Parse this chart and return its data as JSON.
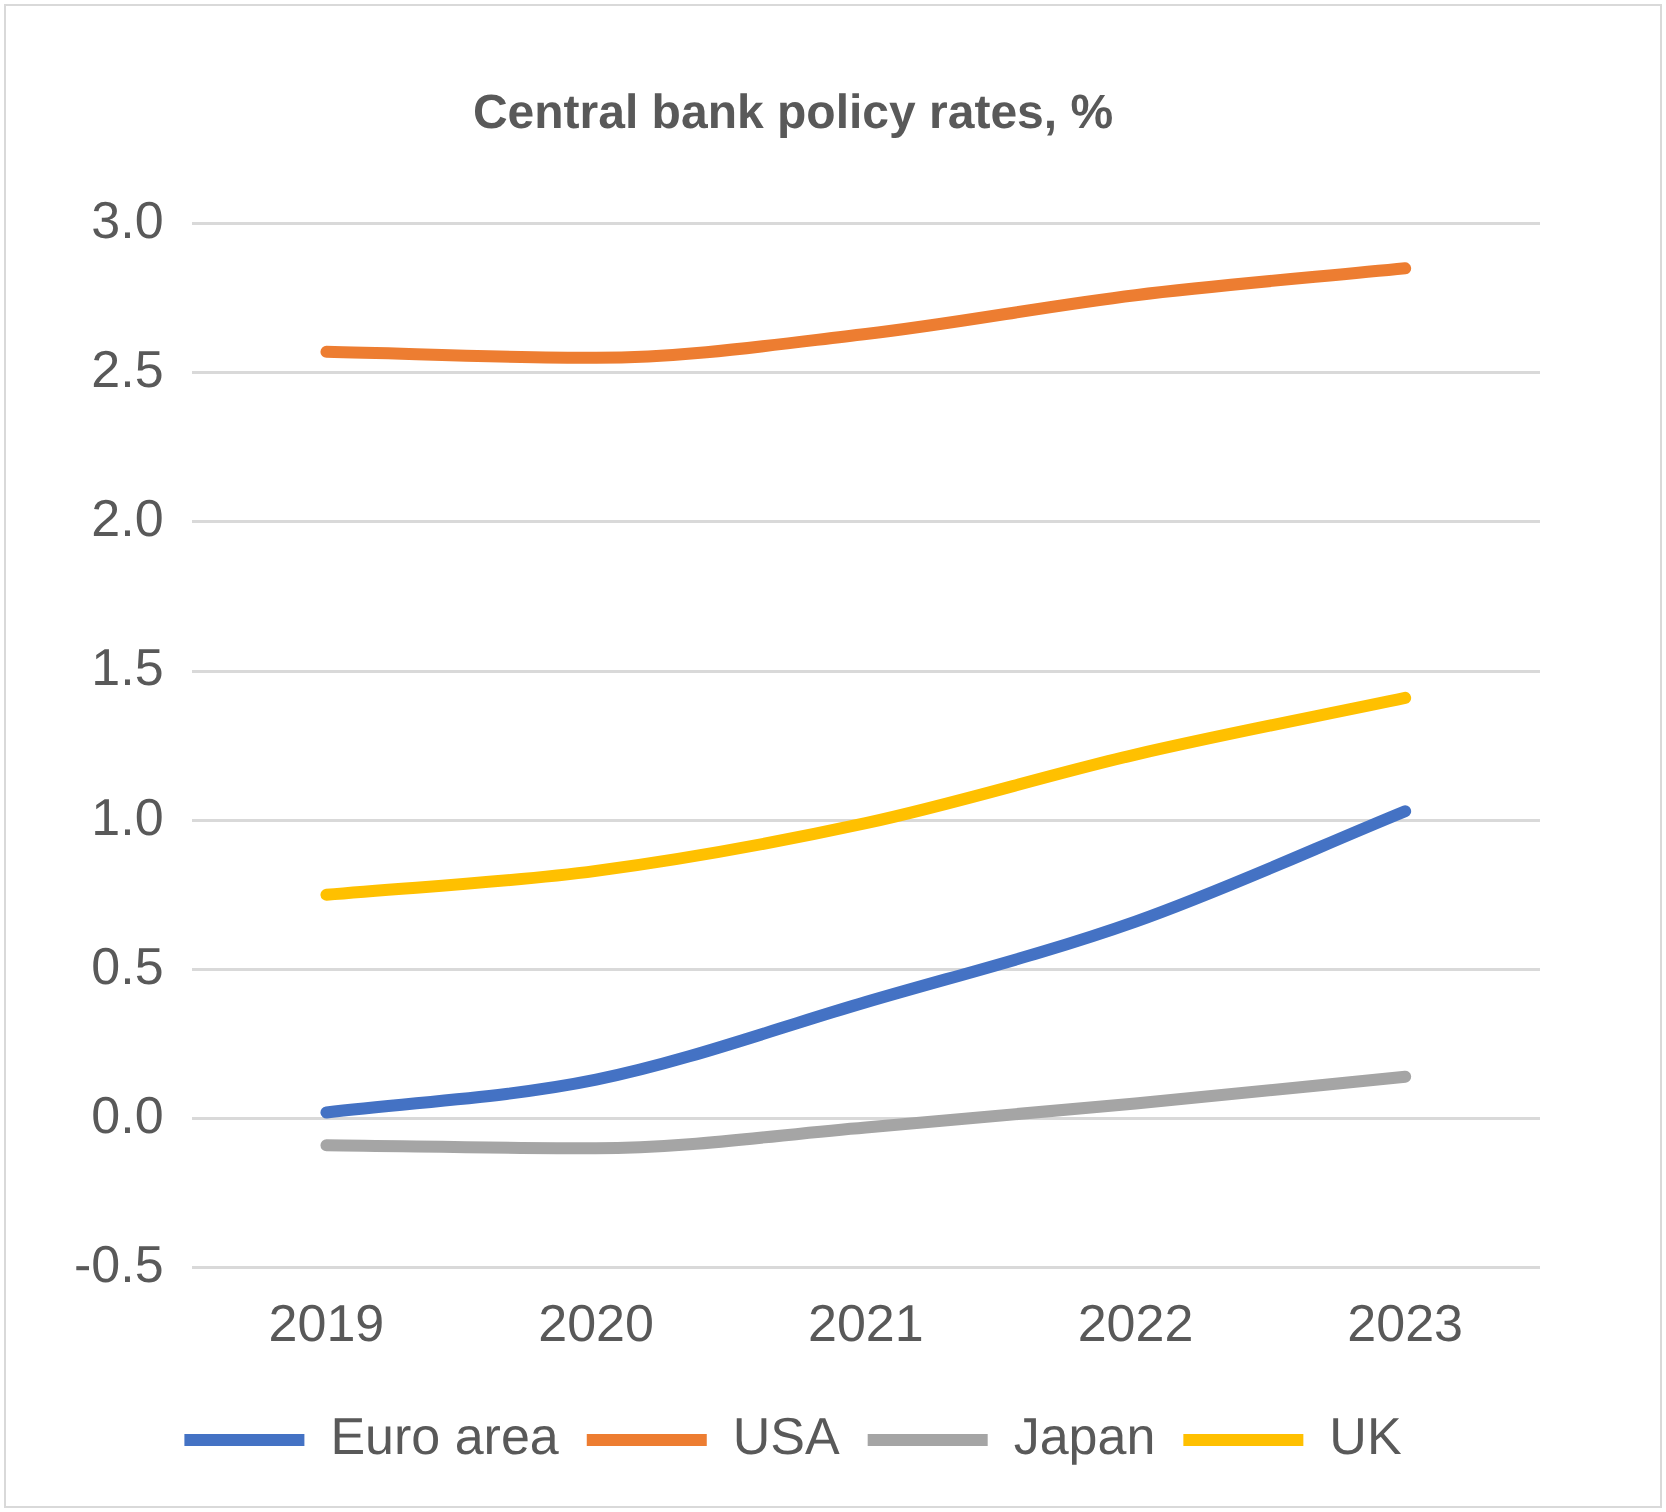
{
  "chart_data": {
    "type": "line",
    "title": "Central bank policy rates, %",
    "categories": [
      "2019",
      "2020",
      "2021",
      "2022",
      "2023"
    ],
    "series": [
      {
        "name": "Euro area",
        "color": "#4472c4",
        "values": [
          0.02,
          0.13,
          0.39,
          0.66,
          1.03
        ]
      },
      {
        "name": "USA",
        "color": "#ed7d31",
        "values": [
          2.57,
          2.55,
          2.63,
          2.76,
          2.85
        ]
      },
      {
        "name": "Japan",
        "color": "#a5a5a5",
        "values": [
          -0.09,
          -0.1,
          -0.03,
          0.05,
          0.14
        ]
      },
      {
        "name": "UK",
        "color": "#ffc000",
        "values": [
          0.75,
          0.83,
          0.99,
          1.22,
          1.41
        ]
      }
    ],
    "ylim": [
      -0.5,
      3.0
    ],
    "yticks": [
      {
        "value": -0.5,
        "label": "-0.5"
      },
      {
        "value": 0,
        "label": "0.0"
      },
      {
        "value": 0.5,
        "label": "0.5"
      },
      {
        "value": 1,
        "label": "1.0"
      },
      {
        "value": 1.5,
        "label": "1.5"
      },
      {
        "value": 2,
        "label": "2.0"
      },
      {
        "value": 2.5,
        "label": "2.5"
      },
      {
        "value": 3,
        "label": "3.0"
      }
    ],
    "grid": "y",
    "legend": "bottom",
    "marker": "none",
    "line_style": "solid"
  }
}
